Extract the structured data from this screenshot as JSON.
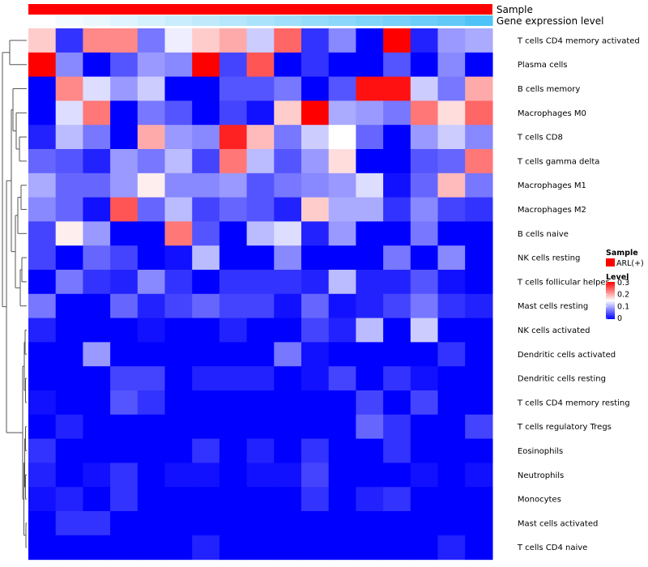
{
  "chart_data": {
    "type": "heatmap",
    "top_annotations": [
      {
        "name": "Sample"
      },
      {
        "name": "Gene expression level"
      }
    ],
    "rows": [
      "T cells CD4 memory activated",
      "Plasma cells",
      "B cells memory",
      "Macrophages M0",
      "T cells CD8",
      "T cells gamma delta",
      "Macrophages M1",
      "Macrophages M2",
      "B cells naive",
      "NK cells resting",
      "T cells follicular helper",
      "Mast cells resting",
      "NK cells activated",
      "Dendritic cells activated",
      "Dendritic cells resting",
      "T cells CD4 memory resting",
      "T cells regulatory  Tregs",
      "Eosinophils",
      "Neutrophils",
      "Monocytes",
      "Mast cells activated",
      "T cells CD4 naive"
    ],
    "values": [
      [
        0.18,
        0.03,
        0.22,
        0.22,
        0.07,
        0.14,
        0.18,
        0.2,
        0.12,
        0.24,
        0.03,
        0.08,
        0.0,
        0.3,
        0.02,
        0.09,
        0.1
      ],
      [
        0.3,
        0.08,
        0.0,
        0.05,
        0.09,
        0.08,
        0.3,
        0.04,
        0.25,
        0.0,
        0.03,
        0.0,
        0.0,
        0.05,
        0.0,
        0.08,
        0.0
      ],
      [
        0.0,
        0.22,
        0.13,
        0.09,
        0.12,
        0.0,
        0.0,
        0.05,
        0.05,
        0.07,
        0.0,
        0.05,
        0.29,
        0.29,
        0.12,
        0.07,
        0.2
      ],
      [
        0.0,
        0.13,
        0.23,
        0.0,
        0.07,
        0.05,
        0.0,
        0.04,
        0.01,
        0.18,
        0.3,
        0.1,
        0.09,
        0.07,
        0.23,
        0.17,
        0.24
      ],
      [
        0.02,
        0.11,
        0.07,
        0.0,
        0.2,
        0.09,
        0.08,
        0.28,
        0.19,
        0.07,
        0.12,
        0.15,
        0.06,
        0.0,
        0.09,
        0.12,
        0.08
      ],
      [
        0.06,
        0.05,
        0.02,
        0.09,
        0.07,
        0.11,
        0.04,
        0.23,
        0.11,
        0.05,
        0.09,
        0.17,
        0.0,
        0.0,
        0.05,
        0.06,
        0.23
      ],
      [
        0.1,
        0.06,
        0.06,
        0.09,
        0.16,
        0.08,
        0.08,
        0.09,
        0.05,
        0.07,
        0.08,
        0.09,
        0.13,
        0.01,
        0.06,
        0.19,
        0.07
      ],
      [
        0.08,
        0.06,
        0.01,
        0.25,
        0.06,
        0.11,
        0.04,
        0.06,
        0.05,
        0.02,
        0.18,
        0.1,
        0.1,
        0.03,
        0.08,
        0.04,
        0.03
      ],
      [
        0.04,
        0.16,
        0.09,
        0.0,
        0.0,
        0.23,
        0.05,
        0.0,
        0.11,
        0.13,
        0.02,
        0.09,
        0.0,
        0.0,
        0.07,
        0.0,
        0.0
      ],
      [
        0.04,
        0.0,
        0.06,
        0.04,
        0.0,
        0.01,
        0.11,
        0.0,
        0.0,
        0.08,
        0.0,
        0.0,
        0.0,
        0.07,
        0.0,
        0.08,
        0.0
      ],
      [
        0.0,
        0.07,
        0.03,
        0.02,
        0.08,
        0.03,
        0.0,
        0.03,
        0.03,
        0.03,
        0.02,
        0.11,
        0.02,
        0.02,
        0.05,
        0.01,
        0.0
      ],
      [
        0.07,
        0.0,
        0.0,
        0.06,
        0.02,
        0.04,
        0.06,
        0.04,
        0.04,
        0.01,
        0.06,
        0.01,
        0.02,
        0.04,
        0.07,
        0.03,
        0.02
      ],
      [
        0.02,
        0.0,
        0.0,
        0.0,
        0.01,
        0.0,
        0.0,
        0.02,
        0.0,
        0.0,
        0.04,
        0.02,
        0.11,
        0.0,
        0.12,
        0.0,
        0.0
      ],
      [
        0.0,
        0.0,
        0.09,
        0.0,
        0.0,
        0.0,
        0.0,
        0.0,
        0.0,
        0.07,
        0.01,
        0.0,
        0.0,
        0.0,
        0.0,
        0.03,
        0.0
      ],
      [
        0.0,
        0.0,
        0.0,
        0.04,
        0.04,
        0.0,
        0.02,
        0.02,
        0.02,
        0.0,
        0.01,
        0.04,
        0.0,
        0.03,
        0.01,
        0.0,
        0.0
      ],
      [
        0.01,
        0.0,
        0.0,
        0.05,
        0.03,
        0.0,
        0.0,
        0.0,
        0.0,
        0.0,
        0.0,
        0.0,
        0.04,
        0.0,
        0.04,
        0.0,
        0.0
      ],
      [
        0.0,
        0.02,
        0.0,
        0.0,
        0.0,
        0.0,
        0.0,
        0.0,
        0.0,
        0.0,
        0.0,
        0.0,
        0.06,
        0.03,
        0.0,
        0.0,
        0.04
      ],
      [
        0.03,
        0.0,
        0.0,
        0.0,
        0.0,
        0.0,
        0.03,
        0.0,
        0.02,
        0.0,
        0.03,
        0.0,
        0.0,
        0.03,
        0.0,
        0.0,
        0.0
      ],
      [
        0.02,
        0.0,
        0.01,
        0.03,
        0.0,
        0.01,
        0.01,
        0.0,
        0.01,
        0.01,
        0.04,
        0.0,
        0.0,
        0.0,
        0.01,
        0.0,
        0.01
      ],
      [
        0.01,
        0.02,
        0.0,
        0.03,
        0.0,
        0.0,
        0.0,
        0.0,
        0.0,
        0.0,
        0.03,
        0.0,
        0.02,
        0.03,
        0.0,
        0.0,
        0.0
      ],
      [
        0.0,
        0.03,
        0.03,
        0.0,
        0.0,
        0.0,
        0.0,
        0.0,
        0.0,
        0.0,
        0.0,
        0.0,
        0.0,
        0.0,
        0.0,
        0.0,
        0.0
      ],
      [
        0.0,
        0.0,
        0.0,
        0.0,
        0.0,
        0.0,
        0.02,
        0.0,
        0.0,
        0.0,
        0.0,
        0.0,
        0.0,
        0.0,
        0.0,
        0.02,
        0.0
      ]
    ],
    "expression_level": [
      0.0,
      0.06,
      0.12,
      0.18,
      0.24,
      0.3,
      0.36,
      0.42,
      0.48,
      0.54,
      0.6,
      0.66,
      0.72,
      0.78,
      0.84,
      0.9,
      1.0
    ],
    "row_dendrogram": true,
    "color_scale": {
      "min": 0,
      "mid": 0.15,
      "max": 0.3,
      "low": "#0000ff",
      "midColor": "#ffffff",
      "high": "#ff0000"
    },
    "legends": [
      {
        "title": "Sample",
        "items": [
          {
            "label": "ARL(+)",
            "color": "#ff0000"
          }
        ]
      },
      {
        "title": "Level",
        "ticks": [
          "0.3",
          "0.2",
          "0.1",
          "0"
        ]
      }
    ],
    "colors": {
      "sample_bar": "#ff0000",
      "expression_low": "#ffffff",
      "expression_high": "#4fc3f7"
    }
  }
}
